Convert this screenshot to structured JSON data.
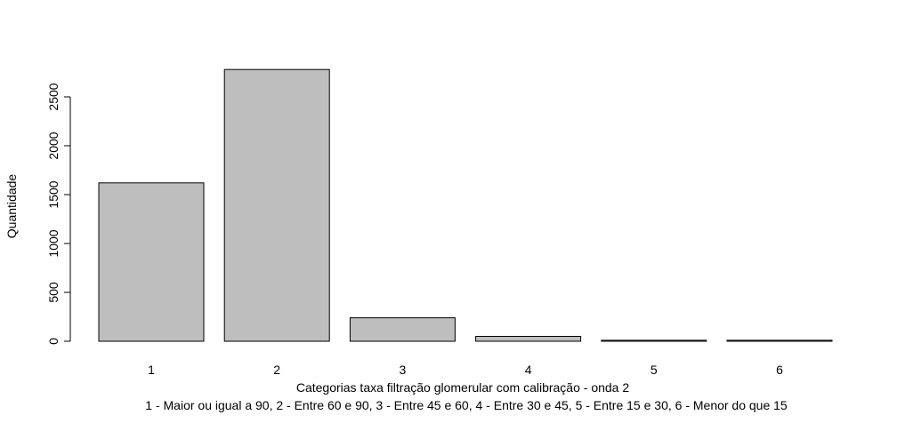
{
  "chart_data": {
    "type": "bar",
    "title": "",
    "categories": [
      "1",
      "2",
      "3",
      "4",
      "5",
      "6"
    ],
    "values": [
      1620,
      2780,
      240,
      50,
      10,
      10
    ],
    "xlabel": "Categorias taxa filtração glomerular com calibração - onda 2",
    "xlabel_note": "1 - Maior ou igual a 90, 2 - Entre 60 e 90, 3 - Entre 45 e 60, 4 - Entre 30 e 45, 5 - Entre 15 e 30, 6 - Menor do que 15",
    "ylabel": "Quantidade",
    "ylim": [
      0,
      2780
    ],
    "yticks": [
      0,
      500,
      1000,
      1500,
      2000,
      2500
    ],
    "bar_color": "#bebebe",
    "bar_border_color": "#000000",
    "grid": false
  }
}
